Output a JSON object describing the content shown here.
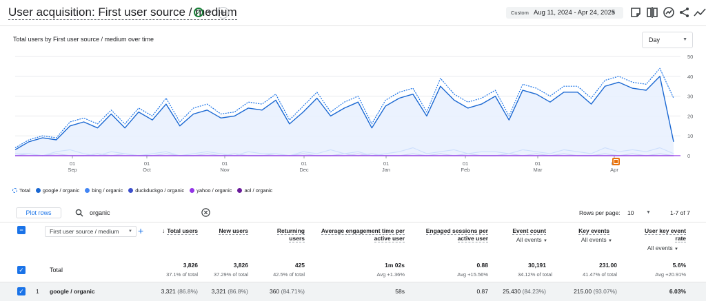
{
  "header": {
    "title": "User acquisition: First user source / medium",
    "date_label": "Custom",
    "date_range": "Aug 11, 2024 - Apr 24, 2025"
  },
  "chart_data": {
    "type": "line",
    "title": "Total users by First user source / medium over time",
    "interval": "Day",
    "ylim": [
      0,
      50
    ],
    "y_ticks": [
      "50",
      "40",
      "30",
      "20",
      "10",
      "0"
    ],
    "x_ticks": [
      {
        "day": "01",
        "month": "Sep"
      },
      {
        "day": "01",
        "month": "Oct"
      },
      {
        "day": "01",
        "month": "Nov"
      },
      {
        "day": "01",
        "month": "Dec"
      },
      {
        "day": "01",
        "month": "Jan"
      },
      {
        "day": "01",
        "month": "Feb"
      },
      {
        "day": "01",
        "month": "Mar"
      },
      {
        "day": "01",
        "month": "Apr"
      }
    ],
    "series": [
      {
        "name": "Total",
        "color": "#1a73e8",
        "style": "dashed",
        "values": [
          4,
          8,
          10,
          9,
          17,
          19,
          16,
          23,
          16,
          24,
          20,
          29,
          17,
          24,
          26,
          21,
          22,
          27,
          26,
          31,
          18,
          25,
          32,
          22,
          27,
          30,
          16,
          28,
          32,
          34,
          22,
          39,
          31,
          27,
          29,
          33,
          20,
          36,
          34,
          30,
          35,
          35,
          29,
          38,
          40,
          37,
          36,
          44,
          29
        ]
      },
      {
        "name": "google / organic",
        "color": "#1967d2",
        "style": "solid",
        "values": [
          3,
          7,
          9,
          8,
          15,
          17,
          14,
          21,
          14,
          22,
          18,
          26,
          15,
          21,
          23,
          19,
          20,
          24,
          23,
          28,
          16,
          22,
          29,
          20,
          24,
          27,
          14,
          25,
          29,
          31,
          20,
          35,
          28,
          24,
          26,
          30,
          18,
          33,
          31,
          27,
          32,
          32,
          26,
          35,
          37,
          34,
          33,
          40,
          7
        ]
      },
      {
        "name": "bing / organic",
        "color": "#4285f4",
        "style": "solid",
        "values": [
          1,
          1,
          0,
          2,
          3,
          1,
          0,
          2,
          1,
          0,
          1,
          2,
          0,
          1,
          2,
          1,
          0,
          2,
          1,
          1,
          0,
          2,
          1,
          3,
          1,
          2,
          0,
          1,
          2,
          4,
          1,
          2,
          3,
          1,
          2,
          2,
          1,
          3,
          2,
          1,
          3,
          2,
          1,
          4,
          2,
          3,
          2,
          4,
          1
        ]
      },
      {
        "name": "duckduckgo / organic",
        "color": "#3c4fcc",
        "style": "solid",
        "values": [
          0,
          1,
          0,
          1,
          0,
          0,
          1,
          0,
          1,
          0,
          0,
          1,
          0,
          0,
          1,
          0,
          1,
          0,
          0,
          1,
          0,
          1,
          0,
          0,
          1,
          0,
          1,
          0,
          0,
          1,
          0,
          1,
          0,
          1,
          0,
          0,
          1,
          0,
          1,
          0,
          1,
          0,
          0,
          1,
          0,
          1,
          0,
          1,
          0
        ]
      },
      {
        "name": "yahoo / organic",
        "color": "#9334e6",
        "style": "solid",
        "values": [
          0,
          0,
          0,
          0,
          0,
          0,
          0,
          0,
          0,
          0,
          0,
          0,
          0,
          0,
          0,
          0,
          0,
          0,
          0,
          0,
          0,
          0,
          0,
          0,
          0,
          1,
          0,
          0,
          0,
          0,
          0,
          0,
          0,
          0,
          0,
          0,
          0,
          0,
          0,
          0,
          0,
          0,
          0,
          0,
          0,
          0,
          0,
          0,
          0
        ]
      },
      {
        "name": "aol / organic",
        "color": "#6a1b9a",
        "style": "solid",
        "values": [
          0,
          0,
          0,
          0,
          0,
          0,
          0,
          0,
          0,
          0,
          0,
          0,
          0,
          0,
          0,
          0,
          0,
          0,
          0,
          0,
          0,
          0,
          0,
          0,
          0,
          0,
          0,
          0,
          0,
          0,
          0,
          0,
          0,
          0,
          0,
          0,
          0,
          0,
          0,
          0,
          0,
          0,
          0,
          0,
          0,
          0,
          0,
          0,
          0
        ]
      }
    ]
  },
  "table": {
    "plot_rows_label": "Plot rows",
    "search_value": "organic",
    "rows_per_page_label": "Rows per page:",
    "rows_per_page": "10",
    "pager_text": "1-7 of 7",
    "dimension_label": "First user source / medium",
    "columns": {
      "total_users": "Total users",
      "new_users": "New users",
      "returning_users_1": "Returning",
      "returning_users_2": "users",
      "avg_engagement_1": "Average engagement time per",
      "avg_engagement_2": "active user",
      "engaged_sessions_1": "Engaged sessions per",
      "engaged_sessions_2": "active user",
      "event_count": "Event count",
      "event_count_sub": "All events",
      "key_events": "Key events",
      "key_events_sub": "All events",
      "user_key_event_rate_1": "User key event",
      "user_key_event_rate_2": "rate",
      "user_key_event_rate_sub": "All events"
    },
    "totals": {
      "label": "Total",
      "total_users": "3,826",
      "total_users_sub": "37.1% of total",
      "new_users": "3,826",
      "new_users_sub": "37.29% of total",
      "returning_users": "425",
      "returning_users_sub": "42.5% of total",
      "avg_engagement": "1m 02s",
      "avg_engagement_sub": "Avg +1.36%",
      "engaged_sessions": "0.88",
      "engaged_sessions_sub": "Avg +15.56%",
      "event_count": "30,191",
      "event_count_sub": "34.12% of total",
      "key_events": "231.00",
      "key_events_sub": "41.47% of total",
      "user_key_event_rate": "5.6%",
      "user_key_event_rate_sub": "Avg +20.91%"
    },
    "rows": [
      {
        "index": "1",
        "name": "google / organic",
        "total_users": "3,321",
        "total_users_pct": "(86.8%)",
        "new_users": "3,321",
        "new_users_pct": "(86.8%)",
        "returning_users": "360",
        "returning_users_pct": "(84.71%)",
        "avg_engagement": "58s",
        "engaged_sessions": "0.87",
        "event_count": "25,430",
        "event_count_pct": "(84.23%)",
        "key_events": "215.00",
        "key_events_pct": "(93.07%)",
        "user_key_event_rate": "6.03%"
      }
    ]
  }
}
